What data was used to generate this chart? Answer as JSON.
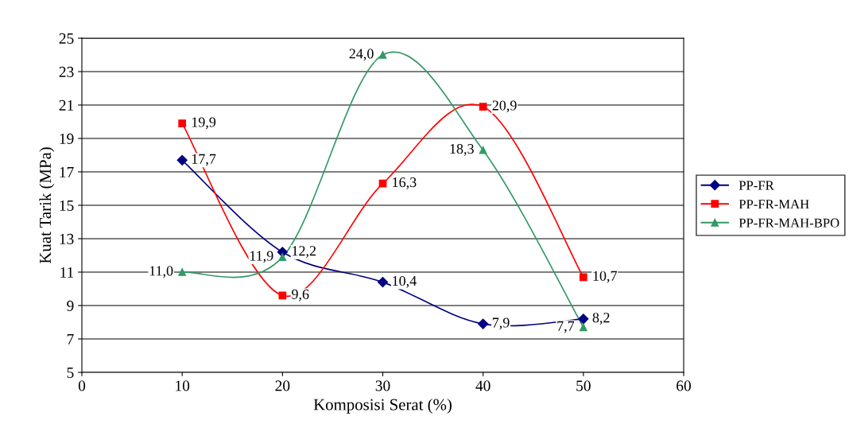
{
  "chart_data": {
    "type": "line",
    "xlabel": "Komposisi Serat (%)",
    "ylabel": "Kuat Tarik (MPa)",
    "xlim": [
      0,
      60
    ],
    "xticks": [
      0,
      10,
      20,
      30,
      40,
      50,
      60
    ],
    "ylim": [
      5,
      25
    ],
    "yticks": [
      5,
      7,
      9,
      11,
      13,
      15,
      17,
      19,
      21,
      23,
      25
    ],
    "grid": "y",
    "legend": "right",
    "line_style": "solid",
    "x": [
      10,
      20,
      30,
      40,
      50
    ],
    "series": [
      {
        "name": "PP-FR",
        "color": "#000080",
        "marker": "diamond",
        "values": [
          17.7,
          12.2,
          10.4,
          7.9,
          8.2
        ],
        "value_labels": [
          "17,7",
          "12,2",
          "10,4",
          "7,9",
          "8,2"
        ]
      },
      {
        "name": "PP-FR-MAH",
        "color": "#ff0000",
        "marker": "square",
        "values": [
          19.9,
          9.6,
          16.3,
          20.9,
          10.7
        ],
        "value_labels": [
          "19,9",
          "9,6",
          "16,3",
          "20,9",
          "10,7"
        ]
      },
      {
        "name": "PP-FR-MAH-BPO",
        "color": "#339966",
        "marker": "triangle",
        "values": [
          11.0,
          11.9,
          24.0,
          18.3,
          7.7
        ],
        "value_labels": [
          "11,0",
          "11,9",
          "24,0",
          "18,3",
          "7,7"
        ]
      }
    ]
  }
}
